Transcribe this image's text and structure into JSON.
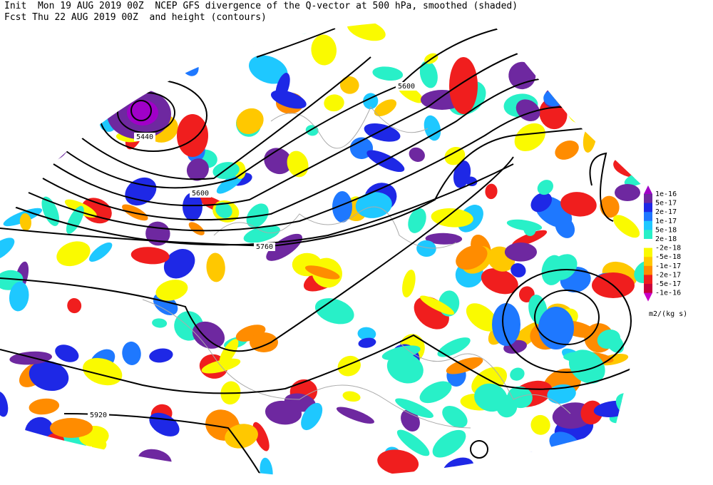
{
  "header": {
    "line1": "Init  Mon 19 AUG 2019 00Z  NCEP GFS divergence of the Q-vector at 500 hPa, smoothed (shaded)",
    "line2": "Fcst Thu 22 AUG 2019 00Z  and height (contours)"
  },
  "contour_labels": [
    "5440",
    "5600",
    "5600",
    "5760",
    "5920"
  ],
  "colorbar": {
    "labels": [
      "1e-16",
      "5e-17",
      "2e-17",
      "1e-17",
      "5e-18",
      "2e-18",
      "-2e-18",
      "-5e-18",
      "-1e-17",
      "-2e-17",
      "-5e-17",
      "-1e-16"
    ],
    "units": "m2/(kg s)"
  }
}
